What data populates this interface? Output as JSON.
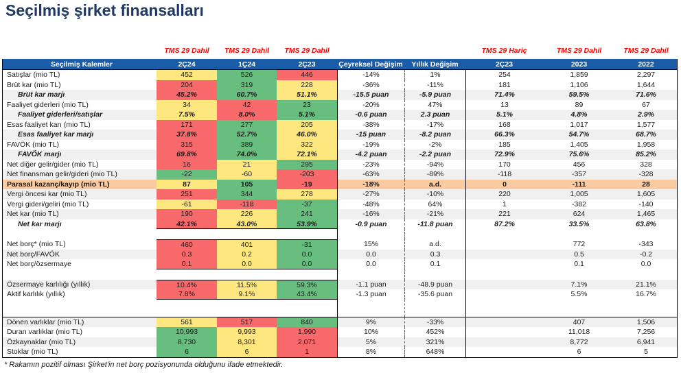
{
  "title": "Seçilmiş şirket finansalları",
  "colors": {
    "title_navy": "#1F3864",
    "header_blue": "#1B5CA9",
    "tms_red": "#FF0000",
    "fill_red": "#F8696B",
    "fill_yellow": "#FFE780",
    "fill_green": "#68BE7E",
    "highlight_peach": "#FACBA0",
    "stripe_gray": "#F0F0F0"
  },
  "table": {
    "tms": {
      "dahil": "TMS 29 Dahil",
      "haric": "TMS 29 Hariç"
    },
    "header": [
      "Seçilmiş Kalemler",
      "2Ç24",
      "1Ç24",
      "2Ç23",
      "Çeyreksel Değişim",
      "Yıllık Değişim",
      "2Ç23",
      "2023",
      "2022"
    ],
    "rows": [
      {
        "label": "Satışlar (mio TL)",
        "q": [
          [
            "452",
            "y"
          ],
          [
            "526",
            "g"
          ],
          [
            "446",
            "r"
          ]
        ],
        "rest": [
          "-14%",
          "1%",
          "254",
          "1,859",
          "2,297"
        ]
      },
      {
        "label": "Brüt kar (mio TL)",
        "q": [
          [
            "204",
            "r"
          ],
          [
            "319",
            "g"
          ],
          [
            "228",
            "y"
          ]
        ],
        "rest": [
          "-36%",
          "-11%",
          "181",
          "1,106",
          "1,644"
        ]
      },
      {
        "label": "Brüt kar marjı",
        "style": "marji",
        "stripe": true,
        "q": [
          [
            "45.2%",
            "r"
          ],
          [
            "60.7%",
            "g"
          ],
          [
            "51.1%",
            "y"
          ]
        ],
        "rest": [
          "-15.5 puan",
          "-5.9 puan",
          "71.4%",
          "59.5%",
          "71.6%"
        ]
      },
      {
        "label": "Faaliyet giderleri (mio TL)",
        "q": [
          [
            "34",
            "y"
          ],
          [
            "42",
            "r"
          ],
          [
            "23",
            "g"
          ]
        ],
        "rest": [
          "-20%",
          "47%",
          "13",
          "89",
          "67"
        ]
      },
      {
        "label": "Faaliyet giderleri/satışlar",
        "style": "marji",
        "stripe": true,
        "q": [
          [
            "7.5%",
            "y"
          ],
          [
            "8.0%",
            "r"
          ],
          [
            "5.1%",
            "g"
          ]
        ],
        "rest": [
          "-0.6 puan",
          "2.3 puan",
          "5.1%",
          "4.8%",
          "2.9%"
        ]
      },
      {
        "label": "Esas faaliyet karı (mio TL)",
        "q": [
          [
            "171",
            "r"
          ],
          [
            "277",
            "g"
          ],
          [
            "205",
            "y"
          ]
        ],
        "rest": [
          "-38%",
          "-17%",
          "168",
          "1,017",
          "1,577"
        ]
      },
      {
        "label": "Esas faaliyet kar marjı",
        "style": "marji",
        "stripe": true,
        "q": [
          [
            "37.8%",
            "r"
          ],
          [
            "52.7%",
            "g"
          ],
          [
            "46.0%",
            "y"
          ]
        ],
        "rest": [
          "-15 puan",
          "-8.2 puan",
          "66.3%",
          "54.7%",
          "68.7%"
        ]
      },
      {
        "label": "FAVÖK (mio TL)",
        "q": [
          [
            "315",
            "r"
          ],
          [
            "389",
            "g"
          ],
          [
            "322",
            "y"
          ]
        ],
        "rest": [
          "-19%",
          "-2%",
          "185",
          "1,405",
          "1,958"
        ]
      },
      {
        "label": "FAVÖK marjı",
        "style": "marji",
        "stripe": true,
        "q": [
          [
            "69.8%",
            "r"
          ],
          [
            "74.0%",
            "g"
          ],
          [
            "72.1%",
            "y"
          ]
        ],
        "rest": [
          "-4.2 puan",
          "-2.2 puan",
          "72.9%",
          "75.6%",
          "85.2%"
        ]
      },
      {
        "label": "Net diğer gelir/gider (mio TL)",
        "q": [
          [
            "16",
            "r"
          ],
          [
            "21",
            "y"
          ],
          [
            "295",
            "g"
          ]
        ],
        "rest": [
          "-23%",
          "-94%",
          "170",
          "456",
          "328"
        ]
      },
      {
        "label": "Net finansman gelir/gideri (mio TL)",
        "stripe": true,
        "q": [
          [
            "-22",
            "g"
          ],
          [
            "-60",
            "y"
          ],
          [
            "-203",
            "r"
          ]
        ],
        "rest": [
          "-63%",
          "-89%",
          "-118",
          "-357",
          "-328"
        ]
      },
      {
        "label": "Parasal kazanç/kayıp (mio TL)",
        "style": "parasal",
        "q": [
          [
            "87",
            "y"
          ],
          [
            "105",
            "g"
          ],
          [
            "-19",
            "r"
          ]
        ],
        "rest": [
          "-18%",
          "a.d.",
          "0",
          "-111",
          "28"
        ]
      },
      {
        "label": "Vergi öncesi kar (mio TL)",
        "stripe": true,
        "q": [
          [
            "251",
            "r"
          ],
          [
            "344",
            "g"
          ],
          [
            "278",
            "y"
          ]
        ],
        "rest": [
          "-27%",
          "-10%",
          "220",
          "1,005",
          "1,605"
        ]
      },
      {
        "label": "Vergi gideri/geliri (mio TL)",
        "q": [
          [
            "-61",
            "y"
          ],
          [
            "-118",
            "r"
          ],
          [
            "-37",
            "g"
          ]
        ],
        "rest": [
          "-48%",
          "64%",
          "1",
          "-382",
          "-140"
        ]
      },
      {
        "label": "Net kar (mio TL)",
        "stripe": true,
        "q": [
          [
            "190",
            "r"
          ],
          [
            "226",
            "y"
          ],
          [
            "241",
            "g"
          ]
        ],
        "rest": [
          "-16%",
          "-21%",
          "221",
          "624",
          "1,465"
        ]
      },
      {
        "label": "Net kar marjı",
        "style": "marji",
        "secEnd": true,
        "q": [
          [
            "42.1%",
            "r"
          ],
          [
            "43.0%",
            "y"
          ],
          [
            "53.9%",
            "g"
          ]
        ],
        "rest": [
          "-0.9 puan",
          "-11.8 puan",
          "87.2%",
          "33.5%",
          "63.8%"
        ]
      },
      {
        "type": "spacer"
      },
      {
        "label": "Net borç* (mio TL)",
        "secStart": true,
        "q": [
          [
            "460",
            "r"
          ],
          [
            "401",
            "y"
          ],
          [
            "-31",
            "g"
          ]
        ],
        "rest": [
          "15%",
          "a.d.",
          "",
          "772",
          "-343"
        ]
      },
      {
        "label": "Net borç/FAVÖK",
        "stripe": true,
        "q": [
          [
            "0.3",
            "r"
          ],
          [
            "0.2",
            "y"
          ],
          [
            "0.0",
            "g"
          ]
        ],
        "rest": [
          "0.0",
          "0.3",
          "",
          "0.5",
          "-0.2"
        ]
      },
      {
        "label": "Net borç/özsermaye",
        "secEnd": true,
        "q": [
          [
            "0.1",
            "r"
          ],
          [
            "0.0",
            "y"
          ],
          [
            "0.0",
            "g"
          ]
        ],
        "rest": [
          "0.0",
          "0.1",
          "",
          "0.1",
          "0.0"
        ]
      },
      {
        "type": "spacer"
      },
      {
        "label": "Özsermaye karlılığı (yıllık)",
        "stripe": true,
        "secStart": true,
        "q": [
          [
            "10.4%",
            "r"
          ],
          [
            "11.5%",
            "y"
          ],
          [
            "59.3%",
            "g"
          ]
        ],
        "rest": [
          "-1.1 puan",
          "-48.9 puan",
          "",
          "7.1%",
          "21.1%"
        ]
      },
      {
        "label": "Aktif karlılık (yıllık)",
        "secEnd": true,
        "q": [
          [
            "7.8%",
            "r"
          ],
          [
            "9.1%",
            "y"
          ],
          [
            "43.4%",
            "g"
          ]
        ],
        "rest": [
          "-1.3 puan",
          "-35.6 puan",
          "",
          "5.5%",
          "16.7%"
        ]
      },
      {
        "type": "gap"
      },
      {
        "label": "Dönen varlıklar (mio TL)",
        "stripe": true,
        "q": [
          [
            "561",
            "y"
          ],
          [
            "517",
            "r"
          ],
          [
            "840",
            "g"
          ]
        ],
        "rest": [
          "9%",
          "-33%",
          "",
          "407",
          "1,506"
        ]
      },
      {
        "label": "Duran varlıklar (mio TL)",
        "q": [
          [
            "10,993",
            "g"
          ],
          [
            "9,993",
            "y"
          ],
          [
            "1,990",
            "r"
          ]
        ],
        "rest": [
          "10%",
          "452%",
          "",
          "11,018",
          "7,256"
        ]
      },
      {
        "label": "Özkaynaklar (mio TL)",
        "stripe": true,
        "q": [
          [
            "8,730",
            "g"
          ],
          [
            "8,301",
            "y"
          ],
          [
            "2,071",
            "r"
          ]
        ],
        "rest": [
          "5%",
          "321%",
          "",
          "8,772",
          "6,941"
        ]
      },
      {
        "label": "Stoklar (mio TL)",
        "q": [
          [
            "6",
            "g"
          ],
          [
            "6",
            "y"
          ],
          [
            "1",
            "r"
          ]
        ],
        "rest": [
          "8%",
          "648%",
          "",
          "6",
          "5"
        ]
      }
    ]
  },
  "footnote": "* Rakamın pozitif olması Şirket'in net borç pozisyonunda olduğunu ifade etmektedir."
}
